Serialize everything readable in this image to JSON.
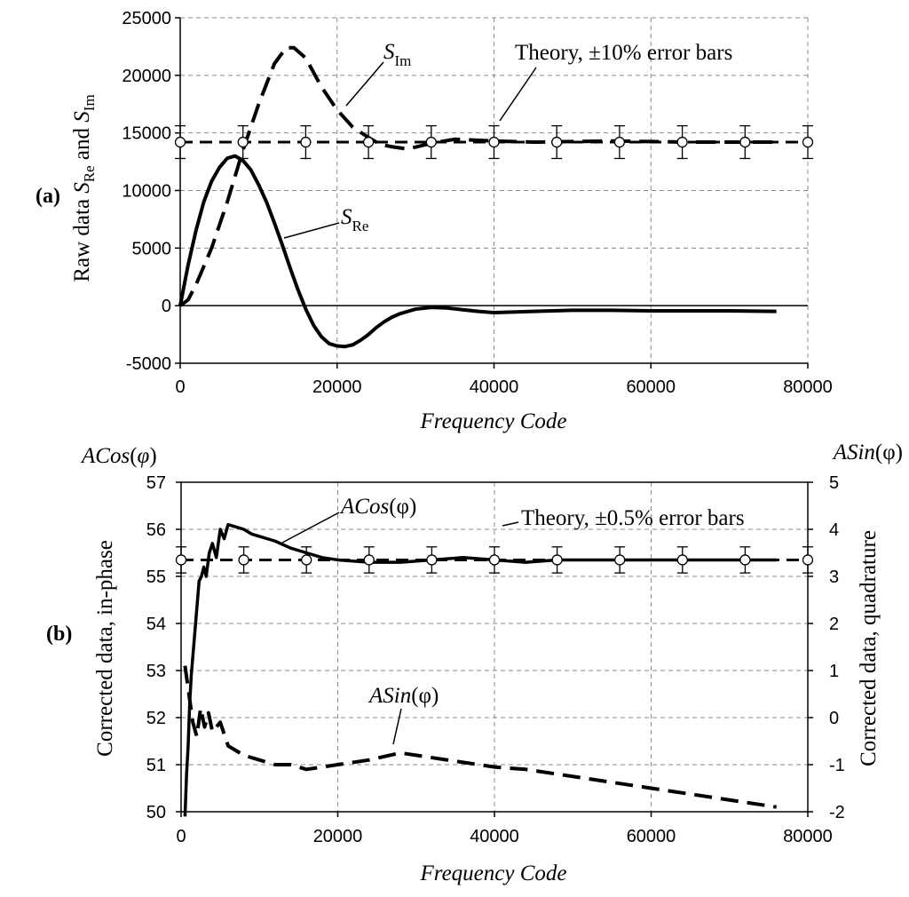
{
  "chart_data": [
    {
      "type": "line",
      "panel_label": "(a)",
      "xlabel": "Frequency Code",
      "ylabel_parts": [
        "Raw data ",
        "S",
        "Re",
        " and ",
        "S",
        "Im"
      ],
      "xlim": [
        0,
        80000
      ],
      "ylim": [
        -5000,
        25000
      ],
      "xticks": [
        "0",
        "20000",
        "40000",
        "60000",
        "80000"
      ],
      "yticks": [
        "-5000",
        "0",
        "5000",
        "10000",
        "15000",
        "20000",
        "25000"
      ],
      "series": [
        {
          "name": "S_Im",
          "style": "dashed",
          "x": [
            0,
            1000,
            2000,
            4000,
            6000,
            8000,
            10000,
            12000,
            13500,
            14500,
            16000,
            18000,
            20000,
            22000,
            24000,
            25500,
            27000,
            29000,
            32000,
            35000,
            40000,
            45000,
            50000,
            55000,
            60000,
            65000,
            70000,
            75000,
            76000
          ],
          "y": [
            0,
            500,
            1800,
            5000,
            9000,
            13500,
            17500,
            21000,
            22400,
            22400,
            21500,
            19000,
            17000,
            15500,
            14600,
            14000,
            13800,
            13600,
            14100,
            14450,
            14300,
            14200,
            14250,
            14300,
            14250,
            14200,
            14200,
            14200,
            14200
          ]
        },
        {
          "name": "S_Re",
          "style": "solid",
          "x": [
            0,
            1000,
            2000,
            3000,
            4000,
            5000,
            6000,
            7000,
            8000,
            9000,
            10000,
            11000,
            12000,
            13000,
            14000,
            15000,
            16000,
            17000,
            18000,
            19000,
            20000,
            21000,
            22000,
            23000,
            24000,
            25000,
            26000,
            27000,
            28000,
            30000,
            32000,
            34000,
            36000,
            38000,
            40000,
            45000,
            50000,
            55000,
            60000,
            65000,
            70000,
            76000
          ],
          "y": [
            0,
            3500,
            6500,
            9000,
            10800,
            12000,
            12800,
            13000,
            12600,
            11800,
            10500,
            9000,
            7200,
            5300,
            3300,
            1400,
            -300,
            -1700,
            -2700,
            -3300,
            -3500,
            -3550,
            -3400,
            -3000,
            -2500,
            -1900,
            -1400,
            -1000,
            -700,
            -300,
            -150,
            -200,
            -350,
            -500,
            -600,
            -500,
            -400,
            -400,
            -450,
            -450,
            -450,
            -500
          ]
        },
        {
          "name": "Theory",
          "style": "dashed-errorbars",
          "x": [
            0,
            8000,
            16000,
            24000,
            32000,
            40000,
            48000,
            56000,
            64000,
            72000,
            80000
          ],
          "y": [
            14200,
            14200,
            14200,
            14200,
            14200,
            14200,
            14200,
            14200,
            14200,
            14200,
            14200
          ],
          "error_fraction": 0.1
        }
      ],
      "annotations": [
        {
          "text_parts": [
            "S",
            "Im"
          ],
          "target_series": "S_Im"
        },
        {
          "text_parts": [
            "S",
            "Re"
          ],
          "target_series": "S_Re"
        },
        {
          "text": "Theory, ±10% error bars",
          "target_series": "Theory"
        }
      ]
    },
    {
      "type": "line",
      "panel_label": "(b)",
      "xlabel": "Frequency Code",
      "ylabel_left": "Corrected data, in-phase",
      "ylabel_right": "Corrected data, quadrature",
      "left_axis_title_parts": [
        "ACos",
        "(",
        "φ",
        ")"
      ],
      "right_axis_title_parts": [
        "ASin",
        "(φ)"
      ],
      "xlim": [
        0,
        80000
      ],
      "ylim_left": [
        50,
        57
      ],
      "ylim_right": [
        -2,
        5
      ],
      "xticks": [
        "0",
        "20000",
        "40000",
        "60000",
        "80000"
      ],
      "yticks_left": [
        "50",
        "51",
        "52",
        "53",
        "54",
        "55",
        "56",
        "57"
      ],
      "yticks_right": [
        "-2",
        "-1",
        "0",
        "1",
        "2",
        "3",
        "4",
        "5"
      ],
      "series": [
        {
          "name": "ACos(φ)",
          "axis": "left",
          "style": "solid",
          "x": [
            500,
            700,
            900,
            1100,
            1300,
            1500,
            1700,
            1900,
            2100,
            2300,
            2600,
            2900,
            3200,
            3600,
            4000,
            4500,
            5000,
            5500,
            6000,
            7000,
            8000,
            9000,
            10000,
            12000,
            14000,
            16000,
            18000,
            20000,
            24000,
            28000,
            32000,
            36000,
            40000,
            44000,
            48000,
            52000,
            56000,
            60000,
            64000,
            68000,
            72000,
            76000
          ],
          "y": [
            49.9,
            50.8,
            51.4,
            52.3,
            52.9,
            53.3,
            53.7,
            54.1,
            54.5,
            54.9,
            55.0,
            55.2,
            55.0,
            55.5,
            55.7,
            55.4,
            56.0,
            55.8,
            56.1,
            56.05,
            56.0,
            55.9,
            55.85,
            55.75,
            55.6,
            55.5,
            55.4,
            55.35,
            55.3,
            55.3,
            55.35,
            55.4,
            55.35,
            55.3,
            55.35,
            55.35,
            55.35,
            55.35,
            55.35,
            55.35,
            55.35,
            55.35
          ]
        },
        {
          "name": "ASin(φ)",
          "axis": "right",
          "style": "dashed",
          "x": [
            500,
            1000,
            1500,
            2000,
            2500,
            3000,
            3500,
            4000,
            5000,
            6000,
            7000,
            8000,
            10000,
            12000,
            14000,
            16000,
            18000,
            20000,
            24000,
            28000,
            32000,
            36000,
            40000,
            44000,
            48000,
            52000,
            56000,
            60000,
            64000,
            68000,
            72000,
            76000
          ],
          "y": [
            1.1,
            0.5,
            -0.1,
            -0.4,
            0.2,
            -0.2,
            0.1,
            -0.3,
            -0.1,
            -0.6,
            -0.7,
            -0.8,
            -0.9,
            -1.0,
            -1.0,
            -1.1,
            -1.05,
            -1.0,
            -0.9,
            -0.75,
            -0.85,
            -0.95,
            -1.05,
            -1.1,
            -1.2,
            -1.3,
            -1.4,
            -1.5,
            -1.6,
            -1.7,
            -1.8,
            -1.9
          ]
        },
        {
          "name": "Theory",
          "axis": "left",
          "style": "dashed-errorbars",
          "x": [
            0,
            8000,
            16000,
            24000,
            32000,
            40000,
            48000,
            56000,
            64000,
            72000,
            80000
          ],
          "y": [
            55.35,
            55.35,
            55.35,
            55.35,
            55.35,
            55.35,
            55.35,
            55.35,
            55.35,
            55.35,
            55.35
          ],
          "error_fraction": 0.005
        }
      ],
      "annotations": [
        {
          "text_parts": [
            "ACos",
            "(φ)"
          ],
          "target_series": "ACos(φ)"
        },
        {
          "text_parts": [
            "ASin",
            "(φ)"
          ],
          "target_series": "ASin(φ)"
        },
        {
          "text": "Theory, ±0.5% error bars",
          "target_series": "Theory"
        }
      ]
    }
  ]
}
